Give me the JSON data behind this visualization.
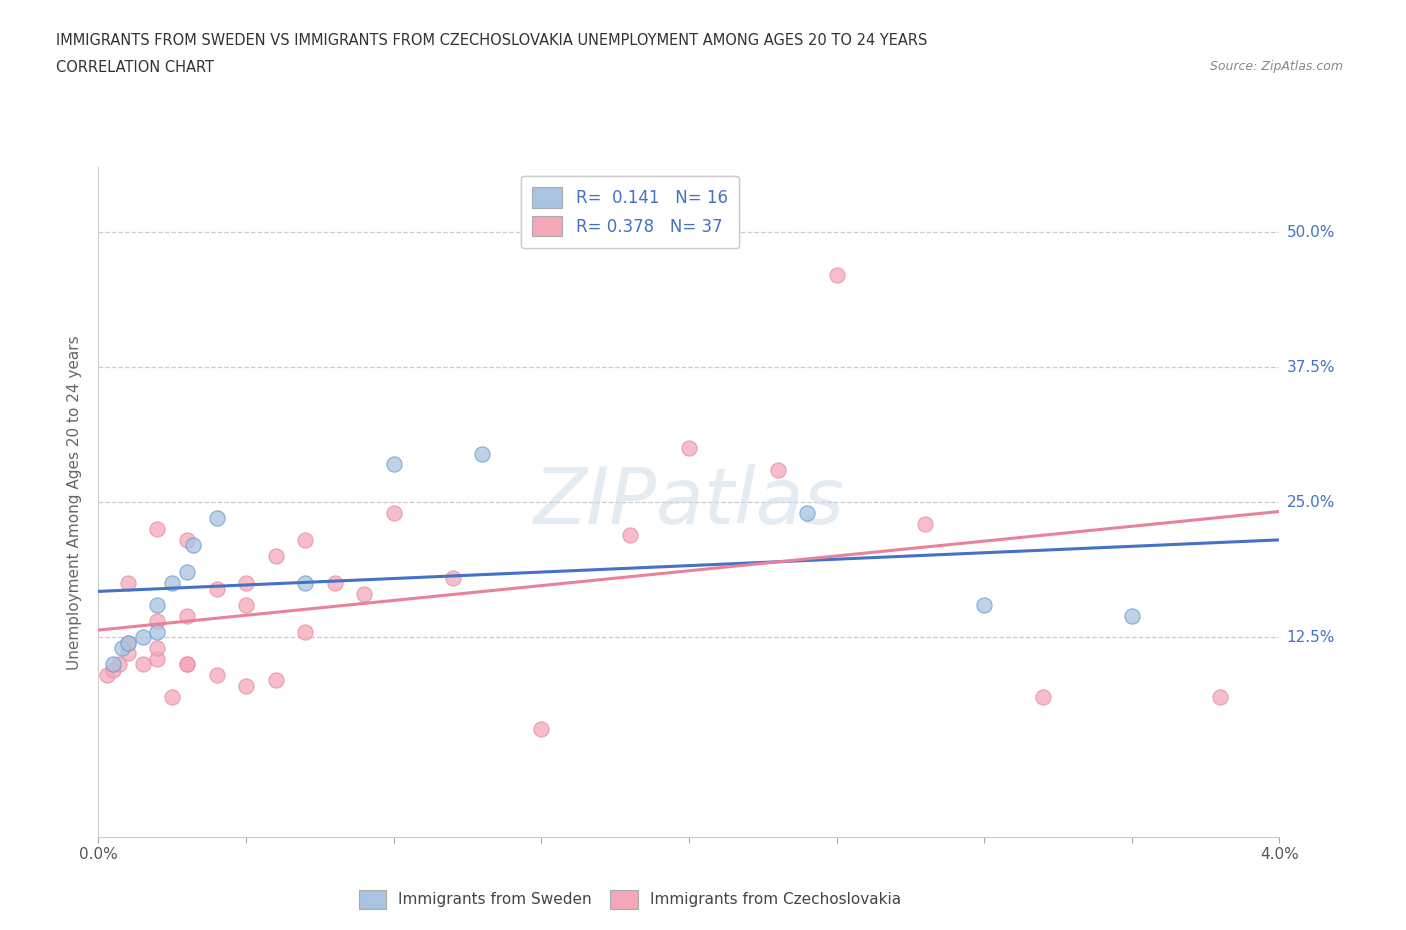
{
  "title_line1": "IMMIGRANTS FROM SWEDEN VS IMMIGRANTS FROM CZECHOSLOVAKIA UNEMPLOYMENT AMONG AGES 20 TO 24 YEARS",
  "title_line2": "CORRELATION CHART",
  "source_text": "Source: ZipAtlas.com",
  "ylabel": "Unemployment Among Ages 20 to 24 years",
  "xlim": [
    0.0,
    0.04
  ],
  "ylim": [
    -0.06,
    0.56
  ],
  "yticks": [
    0.125,
    0.25,
    0.375,
    0.5
  ],
  "ytick_labels": [
    "12.5%",
    "25.0%",
    "37.5%",
    "50.0%"
  ],
  "xticks": [
    0.0,
    0.005,
    0.01,
    0.015,
    0.02,
    0.025,
    0.03,
    0.035,
    0.04
  ],
  "xtick_labels": [
    "0.0%",
    "",
    "",
    "",
    "",
    "",
    "",
    "",
    "4.0%"
  ],
  "sweden_color": "#a8c4e0",
  "czechoslovakia_color": "#f4a7b9",
  "sweden_edge_color": "#6699cc",
  "czechoslovakia_edge_color": "#e88aa0",
  "sweden_line_color": "#4472c4",
  "czechoslovakia_line_color": "#e8829a",
  "right_axis_color": "#4472c4",
  "legend_text_color": "#4472c4",
  "R_sweden": 0.141,
  "N_sweden": 16,
  "R_czechoslovakia": 0.378,
  "N_czechoslovakia": 37,
  "sweden_x": [
    0.0005,
    0.0008,
    0.001,
    0.0015,
    0.002,
    0.002,
    0.0025,
    0.003,
    0.0032,
    0.004,
    0.007,
    0.01,
    0.013,
    0.024,
    0.03,
    0.035
  ],
  "sweden_y": [
    0.1,
    0.115,
    0.12,
    0.125,
    0.13,
    0.155,
    0.175,
    0.185,
    0.21,
    0.235,
    0.175,
    0.285,
    0.295,
    0.24,
    0.155,
    0.145
  ],
  "czechoslovakia_x": [
    0.0003,
    0.0005,
    0.0007,
    0.001,
    0.001,
    0.001,
    0.0015,
    0.002,
    0.002,
    0.002,
    0.002,
    0.0025,
    0.003,
    0.003,
    0.003,
    0.003,
    0.004,
    0.004,
    0.005,
    0.005,
    0.005,
    0.006,
    0.006,
    0.007,
    0.007,
    0.008,
    0.009,
    0.01,
    0.012,
    0.015,
    0.018,
    0.02,
    0.023,
    0.025,
    0.028,
    0.032,
    0.038
  ],
  "czechoslovakia_y": [
    0.09,
    0.095,
    0.1,
    0.11,
    0.12,
    0.175,
    0.1,
    0.105,
    0.115,
    0.14,
    0.225,
    0.07,
    0.1,
    0.145,
    0.215,
    0.1,
    0.09,
    0.17,
    0.08,
    0.155,
    0.175,
    0.085,
    0.2,
    0.13,
    0.215,
    0.175,
    0.165,
    0.24,
    0.18,
    0.04,
    0.22,
    0.3,
    0.28,
    0.46,
    0.23,
    0.07,
    0.07
  ],
  "watermark_text": "ZIPatlas",
  "background_color": "#ffffff",
  "grid_color": "#cccccc",
  "grid_linestyle": "--"
}
